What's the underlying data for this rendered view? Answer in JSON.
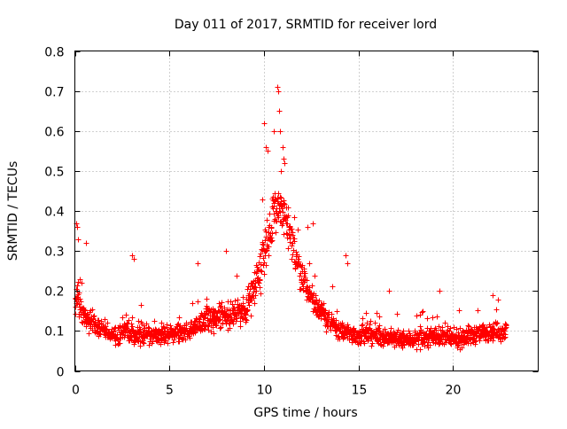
{
  "chart_data": {
    "type": "scatter",
    "title": "Day 011 of 2017, SRMTID for receiver lord",
    "xlabel": "GPS time / hours",
    "ylabel": "SRMTID / TECUs",
    "xlim": [
      0,
      24.5
    ],
    "ylim": [
      0,
      0.8
    ],
    "xticks": [
      0,
      5,
      10,
      15,
      20
    ],
    "yticks": [
      0,
      0.1,
      0.2,
      0.3,
      0.4,
      0.5,
      0.6,
      0.7,
      0.8
    ],
    "xtick_labels": [
      "0",
      "5",
      "10",
      "15",
      "20"
    ],
    "ytick_labels": [
      "0",
      "0.1",
      "0.2",
      "0.3",
      "0.4",
      "0.5",
      "0.6",
      "0.7",
      "0.8"
    ],
    "grid": true,
    "marker": "plus",
    "color": "#ff0000",
    "series": [
      {
        "name": "SRMTID",
        "profile_x": [
          0,
          0.1,
          0.3,
          0.7,
          1.2,
          2,
          3,
          4,
          5,
          6,
          7,
          8,
          9,
          9.5,
          10,
          10.5,
          10.8,
          11.2,
          11.7,
          12.3,
          13,
          13.5,
          14,
          15,
          16,
          17,
          18,
          19,
          20,
          21,
          22,
          22.8
        ],
        "profile_median": [
          0.16,
          0.2,
          0.15,
          0.13,
          0.11,
          0.09,
          0.1,
          0.09,
          0.09,
          0.1,
          0.13,
          0.14,
          0.15,
          0.22,
          0.3,
          0.38,
          0.42,
          0.36,
          0.28,
          0.2,
          0.15,
          0.12,
          0.1,
          0.09,
          0.09,
          0.08,
          0.08,
          0.09,
          0.08,
          0.09,
          0.1,
          0.1
        ],
        "profile_spread": [
          0.06,
          0.09,
          0.06,
          0.05,
          0.04,
          0.04,
          0.05,
          0.04,
          0.04,
          0.04,
          0.05,
          0.05,
          0.06,
          0.08,
          0.1,
          0.13,
          0.12,
          0.1,
          0.08,
          0.06,
          0.05,
          0.05,
          0.04,
          0.04,
          0.04,
          0.04,
          0.04,
          0.04,
          0.04,
          0.04,
          0.04,
          0.04
        ],
        "highlights": [
          [
            0.05,
            0.37
          ],
          [
            0.1,
            0.36
          ],
          [
            0.15,
            0.33
          ],
          [
            0.6,
            0.32
          ],
          [
            3.0,
            0.29
          ],
          [
            3.1,
            0.28
          ],
          [
            6.5,
            0.27
          ],
          [
            8.0,
            0.3
          ],
          [
            10.0,
            0.62
          ],
          [
            10.1,
            0.56
          ],
          [
            10.2,
            0.55
          ],
          [
            10.5,
            0.6
          ],
          [
            10.7,
            0.71
          ],
          [
            10.75,
            0.7
          ],
          [
            10.8,
            0.65
          ],
          [
            10.85,
            0.6
          ],
          [
            11.0,
            0.56
          ],
          [
            11.05,
            0.53
          ],
          [
            11.1,
            0.52
          ],
          [
            10.9,
            0.5
          ],
          [
            12.3,
            0.36
          ],
          [
            12.6,
            0.37
          ],
          [
            14.3,
            0.29
          ],
          [
            14.4,
            0.27
          ],
          [
            16.6,
            0.2
          ],
          [
            19.3,
            0.2
          ],
          [
            22.1,
            0.19
          ]
        ],
        "count": 1800
      }
    ]
  }
}
